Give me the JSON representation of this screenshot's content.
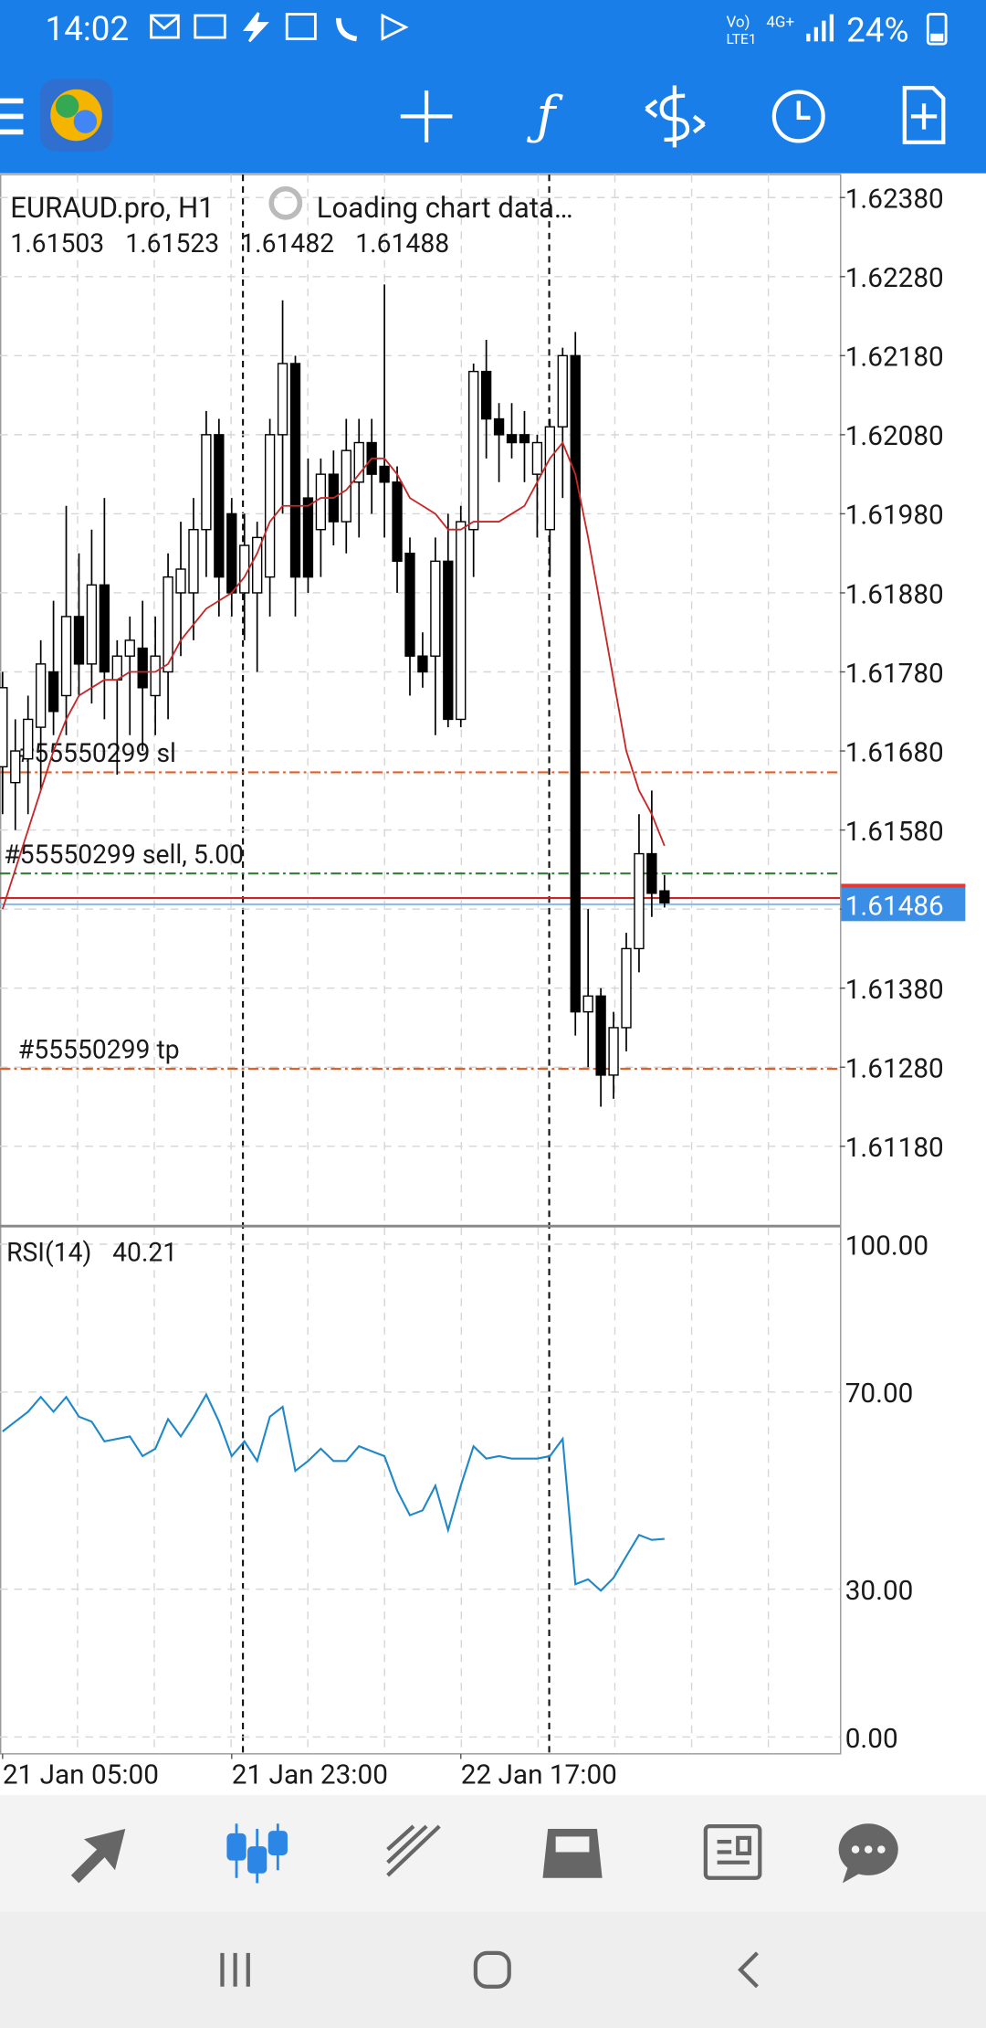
{
  "status_bar": {
    "time": "14:02",
    "volte": "Vo)",
    "lte": "LTE1",
    "network": "4G+",
    "battery": "24%"
  },
  "chart_data": [
    {
      "type": "candlestick",
      "title": "EURAUD.pro, H1",
      "status": "Loading chart data…",
      "open": [
        1.6166,
        1.6164,
        1.6167,
        1.6171,
        1.6178,
        1.6175,
        1.6185,
        1.6179,
        1.6189,
        1.6177,
        1.618,
        1.6181,
        1.6175,
        1.6178,
        1.6188,
        1.6188,
        1.6196,
        1.6208,
        1.6198,
        1.6188,
        1.6188,
        1.619,
        1.6208,
        1.6217,
        1.62,
        1.6196,
        1.6203,
        1.6197,
        1.6202,
        1.6207,
        1.6204,
        1.6202,
        1.6193,
        1.618,
        1.618,
        1.6192,
        1.6172,
        1.6196,
        1.6216,
        1.621,
        1.6208,
        1.6208,
        1.6203,
        1.6196,
        1.6209,
        1.6218,
        1.6135,
        1.6137,
        1.6127,
        1.6133,
        1.6143,
        1.6155,
        1.61503
      ],
      "high": [
        1.6178,
        1.6172,
        1.6175,
        1.6182,
        1.6187,
        1.6199,
        1.6193,
        1.6196,
        1.62,
        1.6182,
        1.6185,
        1.6187,
        1.6185,
        1.6193,
        1.6197,
        1.62,
        1.6211,
        1.621,
        1.62,
        1.6198,
        1.6197,
        1.621,
        1.6225,
        1.6218,
        1.6205,
        1.6205,
        1.6206,
        1.621,
        1.621,
        1.621,
        1.6227,
        1.6204,
        1.6195,
        1.6183,
        1.6195,
        1.6198,
        1.6199,
        1.6217,
        1.622,
        1.6212,
        1.6212,
        1.6211,
        1.6208,
        1.621,
        1.6219,
        1.6221,
        1.6148,
        1.6138,
        1.6135,
        1.6145,
        1.616,
        1.6163,
        1.61523
      ],
      "low": [
        1.616,
        1.6158,
        1.616,
        1.6163,
        1.617,
        1.617,
        1.6175,
        1.6174,
        1.6172,
        1.6165,
        1.617,
        1.6168,
        1.617,
        1.6172,
        1.618,
        1.6182,
        1.619,
        1.6185,
        1.6185,
        1.6182,
        1.6178,
        1.6185,
        1.6198,
        1.6185,
        1.6188,
        1.619,
        1.6194,
        1.6193,
        1.6195,
        1.6198,
        1.6195,
        1.6188,
        1.6175,
        1.6176,
        1.617,
        1.6171,
        1.6171,
        1.619,
        1.6205,
        1.6202,
        1.6205,
        1.6202,
        1.6195,
        1.619,
        1.62,
        1.6132,
        1.6128,
        1.6123,
        1.6124,
        1.613,
        1.614,
        1.6147,
        1.61482
      ],
      "close": [
        1.6176,
        1.6168,
        1.6172,
        1.6179,
        1.6173,
        1.6185,
        1.6179,
        1.6189,
        1.6178,
        1.618,
        1.6182,
        1.6176,
        1.618,
        1.619,
        1.6191,
        1.6196,
        1.6208,
        1.619,
        1.6188,
        1.6194,
        1.6195,
        1.6208,
        1.6217,
        1.619,
        1.619,
        1.6203,
        1.6197,
        1.6206,
        1.6207,
        1.6203,
        1.6202,
        1.6192,
        1.618,
        1.6178,
        1.6192,
        1.6172,
        1.6197,
        1.6216,
        1.621,
        1.6208,
        1.6207,
        1.6207,
        1.6207,
        1.6209,
        1.6218,
        1.6135,
        1.6137,
        1.6127,
        1.6133,
        1.6143,
        1.6155,
        1.615,
        1.61488
      ],
      "ma": [
        1.6148,
        1.6153,
        1.6158,
        1.6163,
        1.6168,
        1.6172,
        1.6175,
        1.6176,
        1.6177,
        1.6177,
        1.6178,
        1.6178,
        1.6178,
        1.6179,
        1.6182,
        1.6184,
        1.6186,
        1.6187,
        1.6188,
        1.619,
        1.6193,
        1.6197,
        1.6199,
        1.6199,
        1.6199,
        1.62,
        1.62,
        1.6201,
        1.6203,
        1.6205,
        1.6205,
        1.6203,
        1.62,
        1.6199,
        1.6198,
        1.6196,
        1.6196,
        1.6197,
        1.6197,
        1.6197,
        1.6198,
        1.6199,
        1.6202,
        1.6205,
        1.6207,
        1.6203,
        1.6195,
        1.6186,
        1.6177,
        1.6168,
        1.6163,
        1.616,
        1.6156
      ],
      "ma_color": "#c62828",
      "ylim": [
        1.61079,
        1.62409
      ],
      "yticks": [
        {
          "value": 1.6238,
          "label": "1.62380"
        },
        {
          "value": 1.6228,
          "label": "1.62280"
        },
        {
          "value": 1.6218,
          "label": "1.62180"
        },
        {
          "value": 1.6208,
          "label": "1.62080"
        },
        {
          "value": 1.6198,
          "label": "1.61980"
        },
        {
          "value": 1.6188,
          "label": "1.61880"
        },
        {
          "value": 1.6178,
          "label": "1.61780"
        },
        {
          "value": 1.6168,
          "label": "1.61680"
        },
        {
          "value": 1.6158,
          "label": "1.61580"
        },
        {
          "value": 1.6148,
          "label": "1.61480"
        },
        {
          "value": 1.6138,
          "label": "1.61380"
        },
        {
          "value": 1.6128,
          "label": "1.61280"
        },
        {
          "value": 1.6118,
          "label": "1.61180"
        }
      ],
      "xticks": [
        {
          "value": 0,
          "label": "21 Jan 05:00"
        },
        {
          "value": 18,
          "label": "21 Jan 23:00"
        },
        {
          "value": 36,
          "label": "22 Jan 17:00"
        }
      ],
      "grid": true,
      "orders": [
        {
          "label": "#55550299 sl",
          "value": 1.61653,
          "color": "#e0602a"
        },
        {
          "label": "#55550299 sell, 5.00",
          "value": 1.61525,
          "color": "#2e7d32"
        },
        {
          "label": "#55550299 tp",
          "value": 1.61278,
          "color": "#e0602a"
        }
      ],
      "ask": 1.61494,
      "bid": 1.61486
    },
    {
      "type": "line",
      "title": "RSI(14)",
      "color": "#1f88c9",
      "values": [
        62,
        64,
        66,
        69,
        66,
        69,
        65,
        64,
        60,
        60.5,
        61,
        57,
        58.5,
        64.5,
        61,
        65,
        69.5,
        64,
        57,
        60,
        56,
        65,
        67,
        54,
        56,
        58.5,
        56,
        56,
        59,
        58,
        57,
        50,
        45,
        46,
        51,
        42,
        51,
        59,
        56.5,
        57,
        56.5,
        56.5,
        56.5,
        57,
        60.5,
        31,
        32,
        29.7,
        32.3,
        36.7,
        41,
        40,
        40.21
      ],
      "ylim": [
        -3.41,
        103.15
      ],
      "yticks": [
        {
          "value": 100,
          "label": "100.00"
        },
        {
          "value": 70,
          "label": "70.00"
        },
        {
          "value": 30,
          "label": "30.00"
        },
        {
          "value": 0,
          "label": "0.00"
        }
      ],
      "grid": true
    }
  ]
}
